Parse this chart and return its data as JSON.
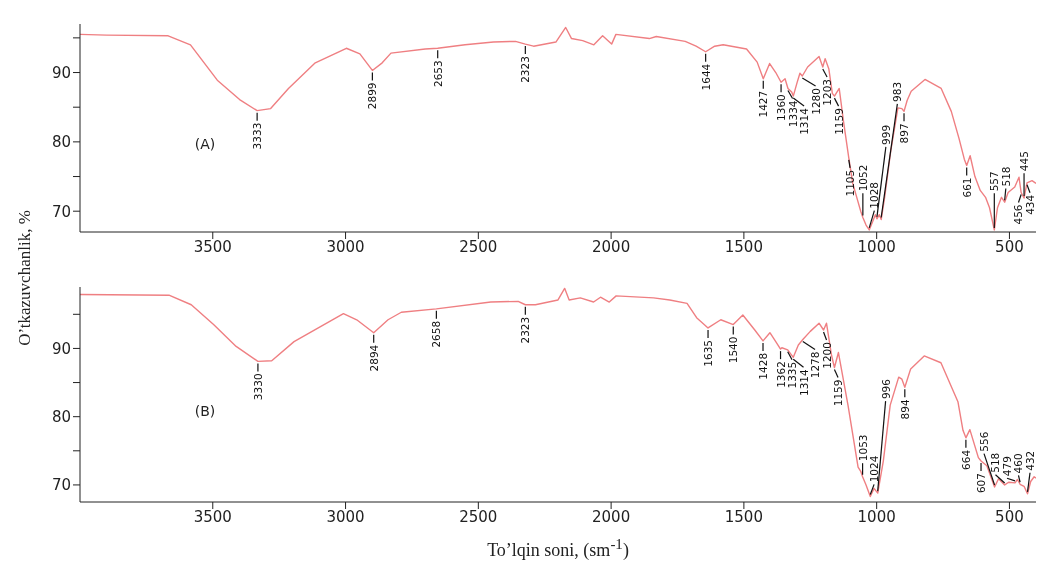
{
  "chart_data": [
    {
      "type": "line",
      "title": "(A)",
      "ylabel": "O’tkazuvchanlik, %",
      "xlim": [
        4000,
        400
      ],
      "xticks": [
        3500,
        3000,
        2500,
        2000,
        1500,
        1000,
        500
      ],
      "ylim": [
        67,
        97
      ],
      "yticks": [
        70,
        {
          "value": 75,
          "label": null
        },
        80,
        {
          "value": 85,
          "label": null
        },
        90,
        {
          "value": 95,
          "label": null
        }
      ],
      "x": [
        4000,
        3900,
        3668,
        3584,
        3483,
        3399,
        3333,
        3282,
        3215,
        3114,
        2997,
        2946,
        2899,
        2862,
        2829,
        2700,
        2653,
        2550,
        2443,
        2360,
        2323,
        2292,
        2208,
        2171,
        2149,
        2107,
        2065,
        2032,
        1998,
        1982,
        1856,
        1830,
        1721,
        1680,
        1644,
        1610,
        1578,
        1490,
        1450,
        1427,
        1403,
        1380,
        1360,
        1345,
        1334,
        1320,
        1314,
        1300,
        1289,
        1280,
        1260,
        1217,
        1203,
        1194,
        1180,
        1167,
        1159,
        1141,
        1125,
        1105,
        1090,
        1075,
        1060,
        1052,
        1040,
        1028,
        1015,
        1005,
        999,
        990,
        983,
        970,
        947,
        920,
        905,
        897,
        885,
        870,
        818,
        757,
        719,
        690,
        670,
        661,
        648,
        630,
        610,
        590,
        575,
        557,
        545,
        530,
        518,
        505,
        480,
        464,
        456,
        445,
        434,
        415,
        400
      ],
      "series": [
        {
          "color": "#ef7f82",
          "values": [
            95.5,
            95.4,
            95.3,
            94,
            88.9,
            86.1,
            84.5,
            84.8,
            87.7,
            91.4,
            93.5,
            92.7,
            90.3,
            91.4,
            92.8,
            93.4,
            93.5,
            94,
            94.4,
            94.5,
            94.1,
            93.8,
            94.4,
            96.5,
            94.9,
            94.6,
            94,
            95.3,
            94.1,
            95.5,
            94.9,
            95.2,
            94.5,
            93.8,
            93,
            93.8,
            94,
            93.4,
            91.5,
            89.1,
            91.3,
            90,
            88.6,
            89.1,
            87.7,
            87.2,
            86.6,
            88.5,
            89.9,
            89.5,
            90.8,
            92.3,
            90.8,
            92,
            90.5,
            87,
            86.6,
            87.7,
            83,
            77.7,
            74,
            72,
            70,
            69.1,
            68,
            67.3,
            68.5,
            69.5,
            68.9,
            69.5,
            68.8,
            72,
            78.7,
            84.9,
            84.8,
            84.4,
            86,
            87.3,
            89,
            87.7,
            84.4,
            80.5,
            77.5,
            76.6,
            78,
            75,
            73,
            72,
            70.5,
            67.3,
            70.5,
            72,
            71.3,
            72.7,
            73.5,
            74.9,
            72.7,
            71.9,
            74.1,
            74.4,
            74
          ]
        }
      ],
      "annotations": [
        {
          "text": "3333",
          "x": 3333,
          "y": 84.5
        },
        {
          "text": "2899",
          "x": 2899,
          "y": 90.3
        },
        {
          "text": "2653",
          "x": 2653,
          "y": 93.5
        },
        {
          "text": "2323",
          "x": 2323,
          "y": 94.1
        },
        {
          "text": "1644",
          "x": 1644,
          "y": 93
        },
        {
          "text": "1427",
          "x": 1427,
          "y": 89.1
        },
        {
          "text": "1360",
          "x": 1360,
          "y": 88.6
        },
        {
          "text": "1334",
          "x": 1334,
          "y": 87.7
        },
        {
          "text": "1314",
          "x": 1314,
          "y": 86.6
        },
        {
          "text": "1280",
          "x": 1280,
          "y": 89.5
        },
        {
          "text": "1203",
          "x": 1203,
          "y": 90.8
        },
        {
          "text": "1159",
          "x": 1159,
          "y": 86.6
        },
        {
          "text": "1105",
          "x": 1105,
          "y": 77.7
        },
        {
          "text": "1052",
          "x": 1052,
          "y": 69.1
        },
        {
          "text": "1028",
          "x": 1028,
          "y": 67.3
        },
        {
          "text": "999",
          "x": 999,
          "y": 68.9
        },
        {
          "text": "983",
          "x": 983,
          "y": 68.8
        },
        {
          "text": "897",
          "x": 897,
          "y": 84.4
        },
        {
          "text": "661",
          "x": 661,
          "y": 76.6
        },
        {
          "text": "557",
          "x": 557,
          "y": 67.3
        },
        {
          "text": "518",
          "x": 518,
          "y": 71.3
        },
        {
          "text": "456",
          "x": 456,
          "y": 72.7
        },
        {
          "text": "445",
          "x": 445,
          "y": 71.9
        },
        {
          "text": "434",
          "x": 434,
          "y": 74.1
        }
      ]
    },
    {
      "type": "line",
      "title": "(B)",
      "xlabel": "To’lqin soni, (sm$^{-1}$)",
      "xlim": [
        4000,
        400
      ],
      "xticks": [
        3500,
        3000,
        2500,
        2000,
        1500,
        1000,
        500
      ],
      "ylim": [
        67.5,
        99
      ],
      "yticks": [
        70,
        {
          "value": 75,
          "label": null
        },
        80,
        {
          "value": 85,
          "label": null
        },
        90,
        {
          "value": 95,
          "label": null
        }
      ],
      "x": [
        4000,
        3665,
        3581,
        3497,
        3412,
        3330,
        3278,
        3194,
        3008,
        2958,
        2894,
        2840,
        2790,
        2658,
        2453,
        2350,
        2323,
        2285,
        2200,
        2175,
        2158,
        2116,
        2066,
        2040,
        2007,
        1981,
        1840,
        1779,
        1714,
        1678,
        1635,
        1587,
        1540,
        1504,
        1459,
        1428,
        1402,
        1380,
        1362,
        1357,
        1335,
        1314,
        1295,
        1278,
        1250,
        1217,
        1200,
        1189,
        1170,
        1159,
        1144,
        1108,
        1070,
        1060,
        1053,
        1040,
        1024,
        1010,
        996,
        975,
        949,
        917,
        905,
        894,
        872,
        821,
        758,
        694,
        675,
        664,
        649,
        617,
        607,
        585,
        556,
        541,
        518,
        503,
        479,
        470,
        460,
        445,
        432,
        420,
        407,
        400
      ],
      "series": [
        {
          "color": "#ef7f82",
          "values": [
            97.9,
            97.8,
            96.4,
            93.5,
            90.3,
            88.1,
            88.2,
            91,
            95.1,
            94.2,
            92.3,
            94.2,
            95.3,
            95.8,
            96.8,
            96.9,
            96.4,
            96.4,
            97.1,
            98.8,
            97.1,
            97.4,
            96.8,
            97.5,
            96.8,
            97.7,
            97.4,
            97.1,
            96.6,
            94.5,
            93,
            94.2,
            93.5,
            94.9,
            92.7,
            91.1,
            92.3,
            91,
            89.9,
            90.1,
            89.8,
            88.7,
            90.5,
            91.3,
            92.5,
            93.7,
            92.7,
            93.7,
            89,
            87.2,
            89.4,
            81.7,
            72.6,
            72,
            71.2,
            70,
            68.3,
            69.5,
            68.8,
            73.5,
            81.7,
            85.8,
            85.5,
            84.3,
            87,
            88.9,
            87.9,
            82.2,
            78,
            76.9,
            78.1,
            74,
            73.5,
            72.8,
            69.7,
            70.9,
            70,
            70.4,
            70.3,
            70.8,
            70.1,
            69.8,
            68.7,
            70.5,
            71.2,
            71
          ]
        }
      ],
      "annotations": [
        {
          "text": "3330",
          "x": 3330,
          "y": 88.1
        },
        {
          "text": "2894",
          "x": 2894,
          "y": 92.3
        },
        {
          "text": "2658",
          "x": 2658,
          "y": 95.8
        },
        {
          "text": "2323",
          "x": 2323,
          "y": 96.4
        },
        {
          "text": "1635",
          "x": 1635,
          "y": 93
        },
        {
          "text": "1540",
          "x": 1540,
          "y": 93.5
        },
        {
          "text": "1428",
          "x": 1428,
          "y": 91.1
        },
        {
          "text": "1362",
          "x": 1362,
          "y": 89.9
        },
        {
          "text": "1335",
          "x": 1335,
          "y": 89.8
        },
        {
          "text": "1314",
          "x": 1314,
          "y": 88.7
        },
        {
          "text": "1278",
          "x": 1278,
          "y": 91.3
        },
        {
          "text": "1200",
          "x": 1200,
          "y": 92.7
        },
        {
          "text": "1159",
          "x": 1159,
          "y": 87.2
        },
        {
          "text": "1053",
          "x": 1053,
          "y": 71.2
        },
        {
          "text": "1024",
          "x": 1024,
          "y": 68.3
        },
        {
          "text": "996",
          "x": 996,
          "y": 68.8
        },
        {
          "text": "894",
          "x": 894,
          "y": 84.3
        },
        {
          "text": "664",
          "x": 664,
          "y": 76.9
        },
        {
          "text": "607",
          "x": 607,
          "y": 73.5
        },
        {
          "text": "556",
          "x": 556,
          "y": 69.7
        },
        {
          "text": "518",
          "x": 518,
          "y": 70
        },
        {
          "text": "479",
          "x": 479,
          "y": 70.3
        },
        {
          "text": "460",
          "x": 460,
          "y": 70.1
        },
        {
          "text": "432",
          "x": 432,
          "y": 68.7
        }
      ]
    }
  ]
}
